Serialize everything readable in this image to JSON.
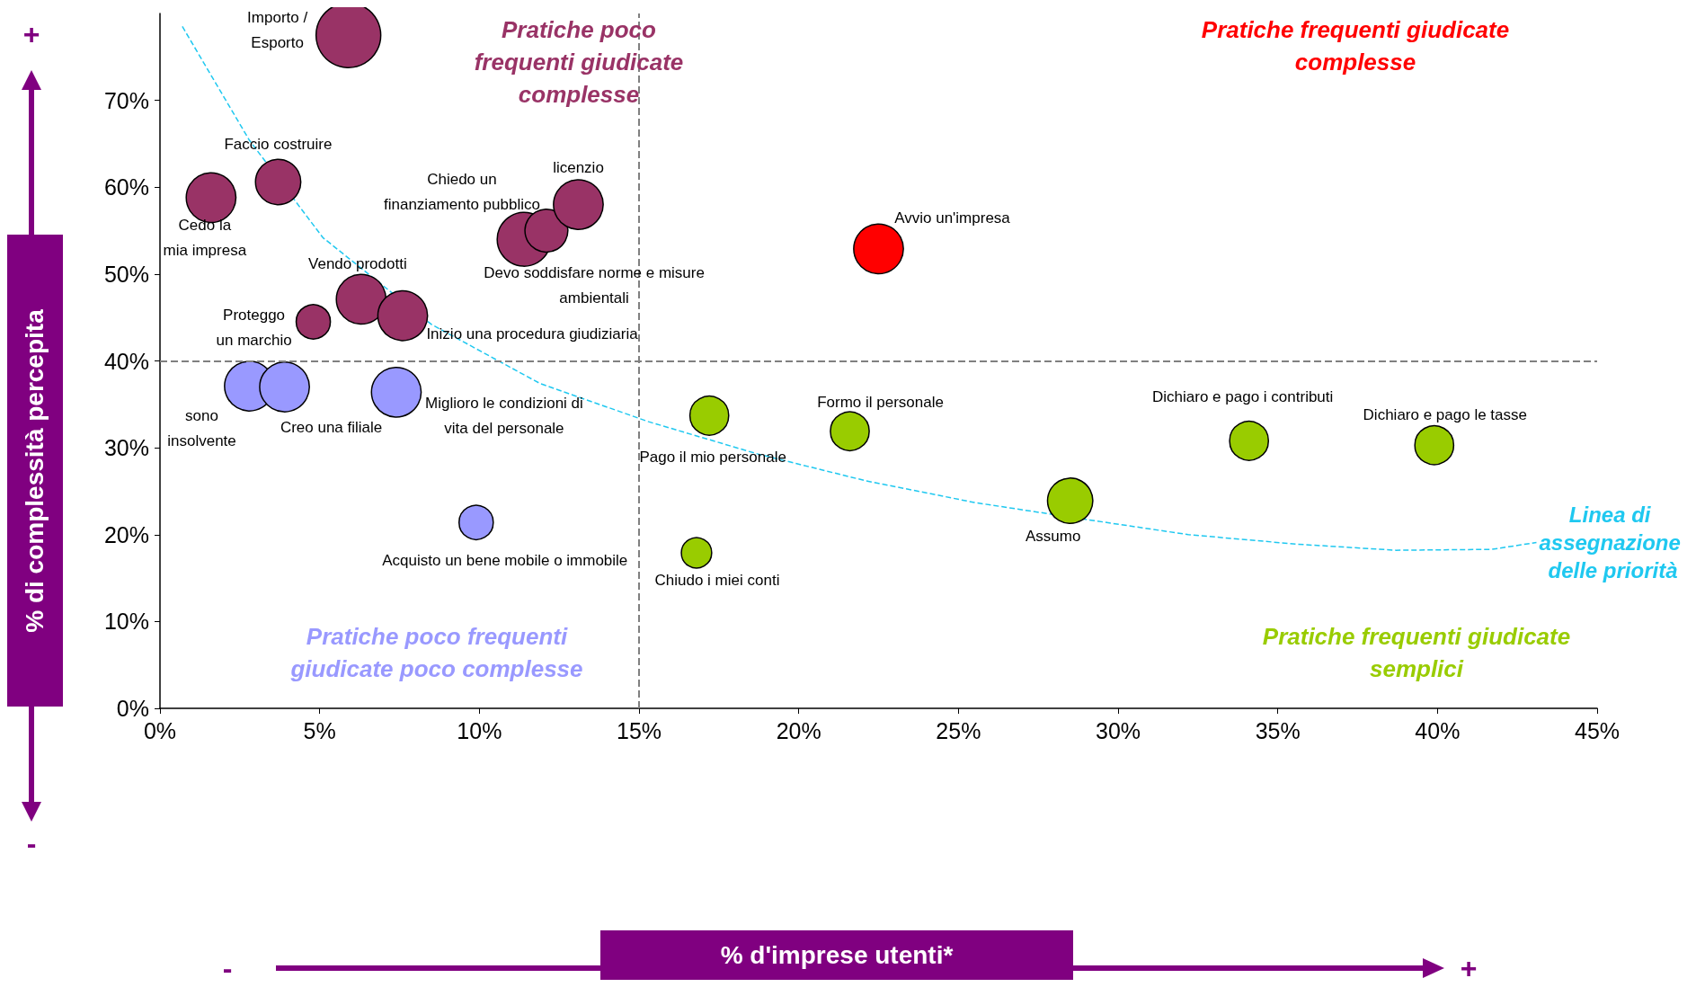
{
  "chart_data": {
    "type": "bubble",
    "ylabel": "% di complessità percepita",
    "xlim": [
      0,
      45
    ],
    "xticks": [
      {
        "value": 0,
        "label": "0%"
      },
      {
        "value": 5,
        "label": "5%"
      },
      {
        "value": 10,
        "label": "10%"
      },
      {
        "value": 15,
        "label": "15%"
      },
      {
        "value": 20,
        "label": "20%"
      },
      {
        "value": 25,
        "label": "25%"
      },
      {
        "value": 30,
        "label": "30%"
      },
      {
        "value": 35,
        "label": "35%"
      },
      {
        "value": 40,
        "label": "40%"
      },
      {
        "value": 45,
        "label": "45%"
      }
    ],
    "ylim": [
      0,
      80
    ],
    "yticks": [
      {
        "value": 0,
        "label": "0%"
      },
      {
        "value": 10,
        "label": "10%"
      },
      {
        "value": 20,
        "label": "20%"
      },
      {
        "value": 30,
        "label": "30%"
      },
      {
        "value": 40,
        "label": "40%"
      },
      {
        "value": 50,
        "label": "50%"
      },
      {
        "value": 60,
        "label": "60%"
      },
      {
        "value": 70,
        "label": "70%"
      }
    ],
    "grid": false,
    "series": [
      {
        "type": "line",
        "name": "Linea di assegnazione delle priorità",
        "color": "#1fc8f0",
        "line_style": "dashed",
        "x": [
          0.7,
          2.8,
          5.1,
          8.5,
          11.9,
          15.3,
          18.7,
          22.1,
          25.5,
          28.9,
          32.2,
          35.6,
          38.7,
          41.7,
          43.1
        ],
        "values": [
          78.5,
          65.4,
          54.2,
          44.2,
          37.4,
          33.0,
          29.3,
          26.2,
          23.7,
          21.8,
          20.0,
          18.9,
          18.2,
          18.3,
          19.1
        ]
      },
      {
        "color": "#993366",
        "x": [
          5.9,
          3.7,
          1.6,
          4.8,
          6.3,
          7.6,
          11.4,
          12.1,
          13.1
        ],
        "values": [
          77.5,
          60.6,
          58.8,
          44.5,
          47.1,
          45.2,
          54.0,
          55.0,
          58.0
        ],
        "sizes": [
          1,
          0.49,
          0.59,
          0.28,
          0.59,
          0.59,
          0.69,
          0.44,
          0.59
        ]
      },
      {
        "color": "#ff0000",
        "x": [
          22.5
        ],
        "values": [
          52.9
        ],
        "sizes": [
          0.59
        ]
      },
      {
        "color": "#9999ff",
        "x": [
          2.8,
          3.9,
          7.4,
          9.9
        ],
        "values": [
          37.1,
          37.0,
          36.4,
          21.4
        ],
        "sizes": [
          0.59,
          0.59,
          0.59,
          0.28
        ]
      },
      {
        "color": "#99cc00",
        "x": [
          17.2,
          21.6,
          16.8,
          28.5,
          34.1,
          39.9
        ],
        "values": [
          33.7,
          31.9,
          17.9,
          23.9,
          30.8,
          30.3
        ],
        "sizes": [
          0.36,
          0.36,
          0.22,
          0.49,
          0.36,
          0.36
        ]
      }
    ],
    "ref_lines": [
      {
        "axis": "x",
        "value": 15,
        "color": "#808080",
        "line_style": "dashed"
      },
      {
        "axis": "y",
        "value": 40,
        "color": "#808080",
        "line_style": "dashed"
      }
    ],
    "annotations": [
      "+",
      "-",
      "-",
      "+",
      "% d'imprese utenti*",
      "Pratiche poco\nfrequenti giudicate\ncomplesse",
      "Pratiche frequenti giudicate\ncomplesse",
      "Pratiche poco frequenti\ngiudicate poco complesse",
      "Pratiche frequenti giudicate\nsemplici",
      {
        "text": "Importo /\nEsporto",
        "x": 5.9,
        "y": 77.5
      },
      {
        "text": "Faccio costruire",
        "x": 3.7,
        "y": 60.6
      },
      {
        "text": "Cedo la\nmia impresa",
        "x": 1.6,
        "y": 58.8
      },
      {
        "text": "Chiedo un\nfinanziamento pubblico",
        "x": 12.1,
        "y": 55.0
      },
      {
        "text": "licenzio",
        "x": 13.1,
        "y": 58.0
      },
      {
        "text": "Avvio un'impresa",
        "x": 22.5,
        "y": 52.9
      },
      {
        "text": "Vendo prodotti",
        "x": 6.3,
        "y": 47.1
      },
      {
        "text": "Devo soddisfare norme e misure\nambientali",
        "x": 11.4,
        "y": 54.0
      },
      {
        "text": "Proteggo\nun marchio",
        "x": 4.8,
        "y": 44.5
      },
      {
        "text": "Inizio una procedura giudiziaria",
        "x": 7.6,
        "y": 45.2
      },
      {
        "text": "sono\ninsolvente",
        "x": 2.8,
        "y": 37.1
      },
      {
        "text": "Creo una filiale",
        "x": 3.9,
        "y": 37.0
      },
      {
        "text": "Miglioro le condizioni di\nvita del personale",
        "x": 7.4,
        "y": 36.4
      },
      {
        "text": "Formo il personale",
        "x": 21.6,
        "y": 31.9
      },
      {
        "text": "Dichiaro e pago i contributi",
        "x": 34.1,
        "y": 30.8
      },
      {
        "text": "Dichiaro e pago le tasse",
        "x": 39.9,
        "y": 30.3
      },
      {
        "text": "Pago il mio personale",
        "x": 17.2,
        "y": 33.7
      },
      {
        "text": "Assumo",
        "x": 28.5,
        "y": 23.9
      },
      {
        "text": "Acquisto un bene mobile o immobile",
        "x": 9.9,
        "y": 21.4
      },
      {
        "text": "Chiudo i miei conti",
        "x": 16.8,
        "y": 17.9
      }
    ]
  }
}
